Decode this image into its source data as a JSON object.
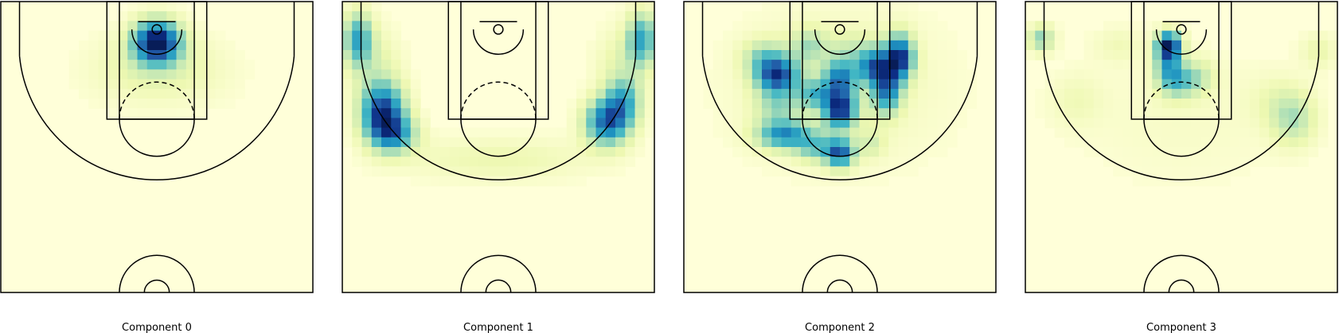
{
  "figure": {
    "panels": [
      {
        "title": "Component 0"
      },
      {
        "title": "Component 1"
      },
      {
        "title": "Component 2"
      },
      {
        "title": "Component 3"
      }
    ]
  },
  "colors": {
    "background": "#ffffd9",
    "ramp": [
      "#ffffd9",
      "#edf8b1",
      "#c7e9b4",
      "#7fcdbb",
      "#41b6c4",
      "#1d91c0",
      "#225ea8",
      "#0c2c84",
      "#081d58"
    ],
    "court_lines": "#000000"
  },
  "chart_data": [
    {
      "type": "heatmap",
      "title": "Component 0",
      "xlabel": "",
      "ylabel": "",
      "grid": false,
      "legend": "none",
      "hotspots": [
        {
          "x": 0.0,
          "y": 2.5,
          "sx": 2.6,
          "sy": 2.4,
          "w": 1.0
        },
        {
          "x": 0.0,
          "y": 6.0,
          "sx": 6.0,
          "sy": 3.5,
          "w": 0.12
        },
        {
          "x": -5.0,
          "y": 8.0,
          "sx": 6.0,
          "sy": 4.0,
          "w": 0.05
        },
        {
          "x": 6.0,
          "y": 8.0,
          "sx": 6.0,
          "sy": 4.0,
          "w": 0.05
        }
      ]
    },
    {
      "type": "heatmap",
      "title": "Component 1",
      "xlabel": "",
      "ylabel": "",
      "grid": false,
      "legend": "none",
      "hotspots": [
        {
          "x": -22.5,
          "y": 2.0,
          "sx": 1.6,
          "sy": 3.0,
          "w": 0.6
        },
        {
          "x": 23.0,
          "y": 2.0,
          "sx": 1.6,
          "sy": 3.0,
          "w": 0.6
        },
        {
          "x": -18.5,
          "y": 14.0,
          "sx": 2.4,
          "sy": 3.2,
          "w": 1.0
        },
        {
          "x": -16.5,
          "y": 17.5,
          "sx": 2.5,
          "sy": 2.0,
          "w": 0.55
        },
        {
          "x": 17.5,
          "y": 15.5,
          "sx": 2.5,
          "sy": 2.6,
          "w": 0.85
        },
        {
          "x": 20.0,
          "y": 12.0,
          "sx": 2.0,
          "sy": 2.5,
          "w": 0.5
        },
        {
          "x": 0.0,
          "y": 21.5,
          "sx": 11.0,
          "sy": 2.5,
          "w": 0.14
        },
        {
          "x": -20.0,
          "y": 6.0,
          "sx": 3.0,
          "sy": 4.0,
          "w": 0.18
        },
        {
          "x": 20.0,
          "y": 6.0,
          "sx": 3.0,
          "sy": 4.0,
          "w": 0.18
        }
      ]
    },
    {
      "type": "heatmap",
      "title": "Component 2",
      "xlabel": "",
      "ylabel": "",
      "grid": false,
      "legend": "none",
      "hotspots": [
        {
          "x": -10.0,
          "y": 8.0,
          "sx": 2.4,
          "sy": 2.0,
          "w": 0.9
        },
        {
          "x": -12.0,
          "y": 5.0,
          "sx": 2.5,
          "sy": 2.0,
          "w": 0.35
        },
        {
          "x": 0.0,
          "y": 8.5,
          "sx": 1.8,
          "sy": 2.2,
          "w": 0.7
        },
        {
          "x": -4.0,
          "y": 11.0,
          "sx": 2.0,
          "sy": 1.6,
          "w": 0.45
        },
        {
          "x": 0.0,
          "y": 13.5,
          "sx": 1.8,
          "sy": 2.0,
          "w": 0.95
        },
        {
          "x": 5.5,
          "y": 6.5,
          "sx": 2.0,
          "sy": 2.0,
          "w": 0.75
        },
        {
          "x": 9.5,
          "y": 5.0,
          "sx": 1.6,
          "sy": 2.5,
          "w": 1.0
        },
        {
          "x": 7.5,
          "y": 10.5,
          "sx": 1.6,
          "sy": 2.5,
          "w": 0.7
        },
        {
          "x": -10.0,
          "y": 13.0,
          "sx": 2.5,
          "sy": 2.0,
          "w": 0.3
        },
        {
          "x": -9.0,
          "y": 17.5,
          "sx": 3.0,
          "sy": 1.6,
          "w": 0.7
        },
        {
          "x": 0.0,
          "y": 20.5,
          "sx": 1.6,
          "sy": 1.6,
          "w": 0.85
        },
        {
          "x": -4.0,
          "y": 19.5,
          "sx": 2.2,
          "sy": 1.6,
          "w": 0.4
        },
        {
          "x": 5.0,
          "y": 19.0,
          "sx": 1.5,
          "sy": 1.5,
          "w": 0.2
        },
        {
          "x": -5.0,
          "y": 3.0,
          "sx": 2.0,
          "sy": 2.0,
          "w": 0.3
        },
        {
          "x": 2.0,
          "y": 3.5,
          "sx": 3.0,
          "sy": 2.0,
          "w": 0.15
        },
        {
          "x": 0.0,
          "y": 10.0,
          "sx": 12.0,
          "sy": 9.0,
          "w": 0.12
        }
      ]
    },
    {
      "type": "heatmap",
      "title": "Component 3",
      "xlabel": "",
      "ylabel": "",
      "grid": false,
      "legend": "none",
      "hotspots": [
        {
          "x": -2.0,
          "y": 3.0,
          "sx": 1.3,
          "sy": 1.5,
          "w": 0.95
        },
        {
          "x": -2.0,
          "y": 6.5,
          "sx": 1.6,
          "sy": 2.5,
          "w": 0.55
        },
        {
          "x": 0.0,
          "y": 9.0,
          "sx": 2.0,
          "sy": 1.8,
          "w": 0.35
        },
        {
          "x": 3.0,
          "y": 8.0,
          "sx": 2.0,
          "sy": 2.0,
          "w": 0.2
        },
        {
          "x": -22.5,
          "y": 2.0,
          "sx": 1.5,
          "sy": 1.5,
          "w": 0.4
        },
        {
          "x": 18.0,
          "y": 15.0,
          "sx": 2.5,
          "sy": 3.0,
          "w": 0.3
        },
        {
          "x": 15.0,
          "y": 12.0,
          "sx": 3.0,
          "sy": 3.0,
          "w": 0.1
        },
        {
          "x": 22.0,
          "y": 4.0,
          "sx": 2.0,
          "sy": 2.0,
          "w": 0.15
        },
        {
          "x": -17.0,
          "y": 12.0,
          "sx": 3.0,
          "sy": 3.0,
          "w": 0.1
        },
        {
          "x": -10.0,
          "y": 3.0,
          "sx": 3.0,
          "sy": 2.0,
          "w": 0.1
        },
        {
          "x": 0.0,
          "y": 15.0,
          "sx": 12.0,
          "sy": 8.0,
          "w": 0.06
        }
      ]
    }
  ]
}
